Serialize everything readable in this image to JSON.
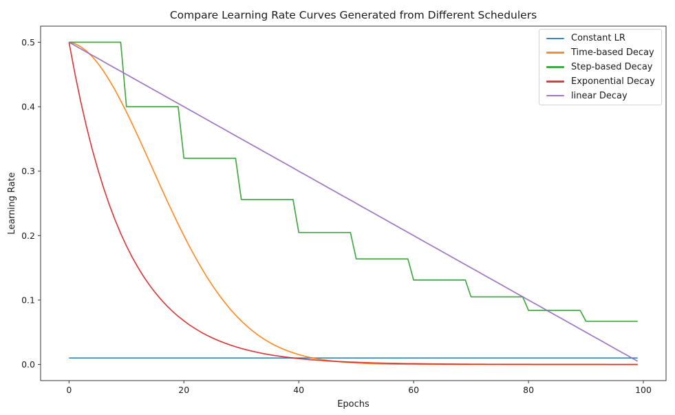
{
  "chart_data": {
    "type": "line",
    "title": "Compare Learning Rate Curves Generated from Different Schedulers",
    "xlabel": "Epochs",
    "ylabel": "Learning Rate",
    "x_start": 0,
    "x_step": 1,
    "xlim": [
      -4.95,
      103.95
    ],
    "ylim": [
      -0.025,
      0.525
    ],
    "xticks": {
      "values": [
        0,
        20,
        40,
        60,
        80,
        100
      ],
      "labels": [
        "0",
        "20",
        "40",
        "60",
        "80",
        "100"
      ]
    },
    "yticks": {
      "values": [
        0.0,
        0.1,
        0.2,
        0.3,
        0.4,
        0.5
      ],
      "labels": [
        "0.0",
        "0.1",
        "0.2",
        "0.3",
        "0.4",
        "0.5"
      ]
    },
    "grid": false,
    "legend_position": "upper right",
    "series": [
      {
        "name": "Constant LR",
        "color": "#1f77b4",
        "values": [
          0.01,
          0.01,
          0.01,
          0.01,
          0.01,
          0.01,
          0.01,
          0.01,
          0.01,
          0.01,
          0.01,
          0.01,
          0.01,
          0.01,
          0.01,
          0.01,
          0.01,
          0.01,
          0.01,
          0.01,
          0.01,
          0.01,
          0.01,
          0.01,
          0.01,
          0.01,
          0.01,
          0.01,
          0.01,
          0.01,
          0.01,
          0.01,
          0.01,
          0.01,
          0.01,
          0.01,
          0.01,
          0.01,
          0.01,
          0.01,
          0.01,
          0.01,
          0.01,
          0.01,
          0.01,
          0.01,
          0.01,
          0.01,
          0.01,
          0.01,
          0.01,
          0.01,
          0.01,
          0.01,
          0.01,
          0.01,
          0.01,
          0.01,
          0.01,
          0.01,
          0.01,
          0.01,
          0.01,
          0.01,
          0.01,
          0.01,
          0.01,
          0.01,
          0.01,
          0.01,
          0.01,
          0.01,
          0.01,
          0.01,
          0.01,
          0.01,
          0.01,
          0.01,
          0.01,
          0.01,
          0.01,
          0.01,
          0.01,
          0.01,
          0.01,
          0.01,
          0.01,
          0.01,
          0.01,
          0.01,
          0.01,
          0.01,
          0.01,
          0.01,
          0.01,
          0.01,
          0.01,
          0.01,
          0.01,
          0.01
        ]
      },
      {
        "name": "Time-based Decay",
        "color": "#ff7f0e",
        "values": [
          0.5,
          0.49776,
          0.49332,
          0.48675,
          0.47814,
          0.46762,
          0.45533,
          0.44142,
          0.42608,
          0.4095,
          0.39187,
          0.37339,
          0.35426,
          0.33468,
          0.31485,
          0.29494,
          0.27513,
          0.25558,
          0.23643,
          0.21781,
          0.19983,
          0.18258,
          0.16613,
          0.15055,
          0.13588,
          0.12214,
          0.10935,
          0.0975,
          0.08659,
          0.07659,
          0.06748,
          0.05922,
          0.05177,
          0.04507,
          0.03909,
          0.03377,
          0.02906,
          0.02491,
          0.02128,
          0.0181,
          0.01534,
          0.01295,
          0.01089,
          0.00913,
          0.00762,
          0.00633,
          0.00525,
          0.00433,
          0.00356,
          0.00292,
          0.00238,
          0.00194,
          0.00157,
          0.00127,
          0.00102,
          0.00082,
          0.00065,
          0.00052,
          0.00041,
          0.00033,
          0.00026,
          0.0002,
          0.00016,
          0.00012,
          0.0001,
          8e-05,
          6e-05,
          5e-05,
          4e-05,
          3e-05,
          2e-05,
          2e-05,
          1e-05,
          1e-05,
          1e-05,
          1e-05,
          1e-05,
          1e-05,
          0,
          0,
          0,
          0,
          0,
          0,
          0,
          0,
          0,
          0,
          0,
          0,
          0,
          0,
          0,
          0,
          0,
          0,
          0,
          0,
          0,
          0
        ]
      },
      {
        "name": "Step-based Decay",
        "color": "#2ca02c",
        "values": [
          0.5,
          0.5,
          0.5,
          0.5,
          0.5,
          0.5,
          0.5,
          0.5,
          0.5,
          0.5,
          0.4,
          0.4,
          0.4,
          0.4,
          0.4,
          0.4,
          0.4,
          0.4,
          0.4,
          0.4,
          0.32,
          0.32,
          0.32,
          0.32,
          0.32,
          0.32,
          0.32,
          0.32,
          0.32,
          0.32,
          0.256,
          0.256,
          0.256,
          0.256,
          0.256,
          0.256,
          0.256,
          0.256,
          0.256,
          0.256,
          0.2048,
          0.2048,
          0.2048,
          0.2048,
          0.2048,
          0.2048,
          0.2048,
          0.2048,
          0.2048,
          0.2048,
          0.16384,
          0.16384,
          0.16384,
          0.16384,
          0.16384,
          0.16384,
          0.16384,
          0.16384,
          0.16384,
          0.16384,
          0.13107,
          0.13107,
          0.13107,
          0.13107,
          0.13107,
          0.13107,
          0.13107,
          0.13107,
          0.13107,
          0.13107,
          0.10486,
          0.10486,
          0.10486,
          0.10486,
          0.10486,
          0.10486,
          0.10486,
          0.10486,
          0.10486,
          0.10486,
          0.08389,
          0.08389,
          0.08389,
          0.08389,
          0.08389,
          0.08389,
          0.08389,
          0.08389,
          0.08389,
          0.08389,
          0.06711,
          0.06711,
          0.06711,
          0.06711,
          0.06711,
          0.06711,
          0.06711,
          0.06711,
          0.06711,
          0.06711
        ]
      },
      {
        "name": "Exponential Decay",
        "color": "#d62728",
        "values": [
          0.5,
          0.45242,
          0.40937,
          0.37041,
          0.33516,
          0.30327,
          0.27441,
          0.24829,
          0.22466,
          0.20328,
          0.18394,
          0.16644,
          0.1506,
          0.13627,
          0.1233,
          0.11157,
          0.10095,
          0.09134,
          0.08265,
          0.07478,
          0.06767,
          0.06123,
          0.0554,
          0.05013,
          0.04536,
          0.04104,
          0.03714,
          0.0336,
          0.03041,
          0.02751,
          0.02489,
          0.02252,
          0.02038,
          0.01844,
          0.01669,
          0.0151,
          0.01366,
          0.01236,
          0.01118,
          0.01012,
          0.00916,
          0.00829,
          0.0075,
          0.00678,
          0.00614,
          0.00555,
          0.00503,
          0.00455,
          0.00411,
          0.00372,
          0.00337,
          0.00305,
          0.00276,
          0.0025,
          0.00226,
          0.00204,
          0.00185,
          0.00167,
          0.00151,
          0.00137,
          0.00124,
          0.00112,
          0.00101,
          0.00092,
          0.00083,
          0.00075,
          0.00068,
          0.00061,
          0.00056,
          0.0005,
          0.00046,
          0.00041,
          0.00037,
          0.00034,
          0.00031,
          0.00028,
          0.00025,
          0.00023,
          0.00021,
          0.00019,
          0.00017,
          0.00015,
          0.00014,
          0.00012,
          0.00011,
          0.0001,
          9e-05,
          8e-05,
          8e-05,
          7e-05,
          6e-05,
          6e-05,
          5e-05,
          5e-05,
          4e-05,
          4e-05,
          3e-05,
          3e-05,
          3e-05,
          2e-05
        ]
      },
      {
        "name": "linear Decay",
        "color": "#9467bd",
        "values": [
          0.5,
          0.495,
          0.49,
          0.485,
          0.48,
          0.475,
          0.47,
          0.465,
          0.46,
          0.455,
          0.45,
          0.445,
          0.44,
          0.435,
          0.43,
          0.425,
          0.42,
          0.415,
          0.41,
          0.405,
          0.4,
          0.395,
          0.39,
          0.385,
          0.38,
          0.375,
          0.37,
          0.365,
          0.36,
          0.355,
          0.35,
          0.345,
          0.34,
          0.335,
          0.33,
          0.325,
          0.32,
          0.315,
          0.31,
          0.305,
          0.3,
          0.295,
          0.29,
          0.285,
          0.28,
          0.275,
          0.27,
          0.265,
          0.26,
          0.255,
          0.25,
          0.245,
          0.24,
          0.235,
          0.23,
          0.225,
          0.22,
          0.215,
          0.21,
          0.205,
          0.2,
          0.195,
          0.19,
          0.185,
          0.18,
          0.175,
          0.17,
          0.165,
          0.16,
          0.155,
          0.15,
          0.145,
          0.14,
          0.135,
          0.13,
          0.125,
          0.12,
          0.115,
          0.11,
          0.105,
          0.1,
          0.095,
          0.09,
          0.085,
          0.08,
          0.075,
          0.07,
          0.065,
          0.06,
          0.055,
          0.05,
          0.045,
          0.04,
          0.035,
          0.03,
          0.025,
          0.02,
          0.015,
          0.01,
          0.005
        ]
      }
    ]
  }
}
